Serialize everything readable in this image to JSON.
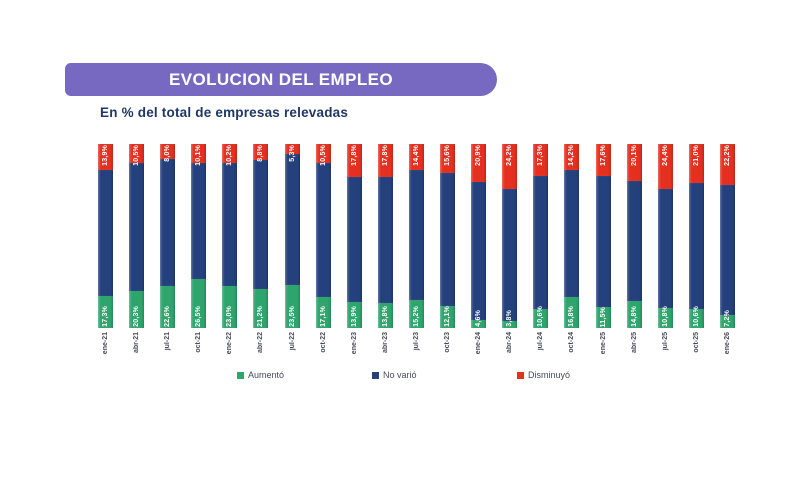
{
  "header": {
    "title": "EVOLUCION DEL EMPLEO",
    "subtitle": "En % del total de empresas relevadas"
  },
  "colors": {
    "banner": "#7769C1",
    "title_text": "#FFFFFF",
    "subtitle_text": "#1F3765",
    "aumento": "#2FA56E",
    "no_vario": "#24417E",
    "disminuyo": "#E53020",
    "axis_label": "#474B59"
  },
  "chart_data": {
    "type": "bar",
    "stacked": true,
    "unit": "%",
    "stack_total": 100,
    "grid": false,
    "categories": [
      "ene-21",
      "abr-21",
      "jul-21",
      "oct-21",
      "ene-22",
      "abr-22",
      "jul-22",
      "oct-22",
      "ene-23",
      "abr-23",
      "jul-23",
      "oct-23",
      "ene-24",
      "abr-24",
      "jul-24",
      "oct-24",
      "ene-25",
      "abr-25",
      "jul-25",
      "oct-25",
      "ene-26"
    ],
    "series": [
      {
        "name": "Aumentó",
        "color": "#2FA56E",
        "values": [
          17.3,
          20.3,
          22.6,
          26.5,
          23.0,
          21.2,
          23.5,
          17.1,
          13.9,
          13.8,
          15.2,
          12.1,
          4.6,
          3.8,
          10.6,
          16.8,
          11.5,
          14.8,
          10.8,
          10.6,
          7.2
        ],
        "labels": [
          "17,3%",
          "20,3%",
          "22,6%",
          "26,5%",
          "23,0%",
          "21,2%",
          "23,5%",
          "17,1%",
          "13,9%",
          "13,8%",
          "15,2%",
          "12,1%",
          "4,6%",
          "3,8%",
          "10,6%",
          "16,8%",
          "11,5%",
          "14,8%",
          "10,8%",
          "10,6%",
          "7,2%"
        ]
      },
      {
        "name": "No varió",
        "color": "#24417E"
      },
      {
        "name": "Disminuyó",
        "color": "#E53020",
        "values": [
          13.9,
          10.5,
          8.0,
          10.1,
          10.2,
          8.8,
          5.3,
          10.5,
          17.8,
          17.8,
          14.4,
          15.6,
          20.9,
          24.2,
          17.3,
          14.2,
          17.6,
          20.1,
          24.4,
          21.0,
          22.2
        ],
        "labels": [
          "13,9%",
          "10,5%",
          "8,0%",
          "10,1%",
          "10,2%",
          "8,8%",
          "5,3%",
          "10,5%",
          "17,8%",
          "17,8%",
          "14,4%",
          "15,6%",
          "20,9%",
          "24,2%",
          "17,3%",
          "14,2%",
          "17,6%",
          "20,1%",
          "24,4%",
          "21,0%",
          "22,2%"
        ]
      }
    ],
    "legend": {
      "position": "bottom",
      "entries": [
        "Aumentó",
        "No varió",
        "Disminuyó"
      ]
    }
  }
}
